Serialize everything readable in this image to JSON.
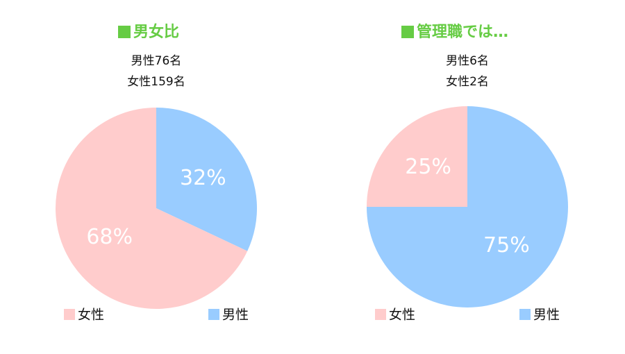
{
  "chart_data": [
    {
      "type": "pie",
      "title": "男女比",
      "subtitle": [
        "男性76名",
        "女性159名"
      ],
      "categories": [
        "男性",
        "女性"
      ],
      "values": [
        32,
        68
      ],
      "value_labels": [
        "32%",
        "68%"
      ],
      "colors": [
        "#99ccff",
        "#ffcccc"
      ]
    },
    {
      "type": "pie",
      "title": "管理職では…",
      "subtitle": [
        "男性6名",
        "女性2名"
      ],
      "categories": [
        "男性",
        "女性"
      ],
      "values": [
        75,
        25
      ],
      "value_labels": [
        "75%",
        "25%"
      ],
      "colors": [
        "#99ccff",
        "#ffcccc"
      ]
    }
  ]
}
